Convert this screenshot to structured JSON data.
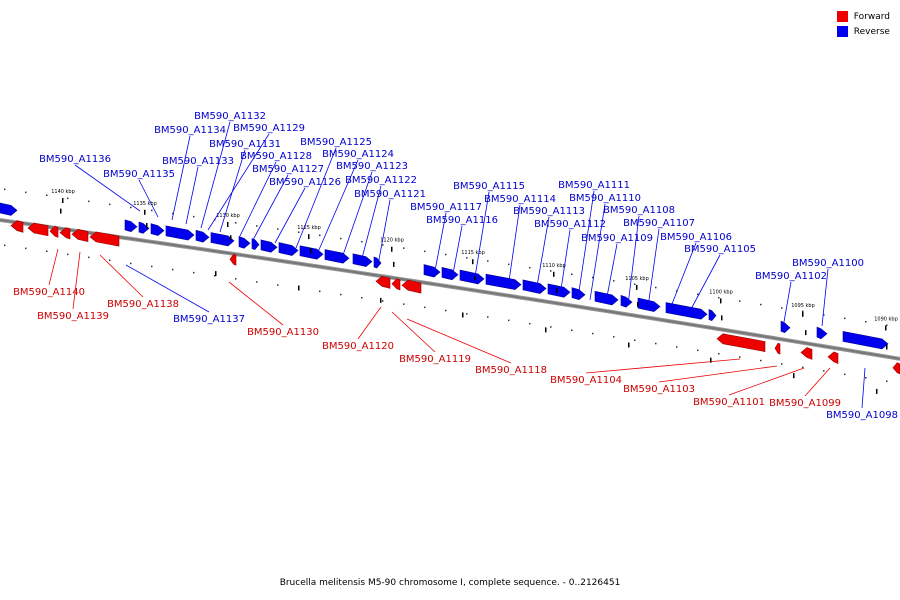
{
  "legend": [
    {
      "label": "Forward",
      "color": "#ee0000"
    },
    {
      "label": "Reverse",
      "color": "#0000ee"
    }
  ],
  "caption": "Brucella melitensis M5-90 chromosome I, complete sequence. - 0..2126451",
  "colors": {
    "forward": "#ee0000",
    "reverse": "#0000ee",
    "axis": "#777777"
  },
  "ticks": [
    "1140 kbp",
    "1135 kbp",
    "1130 kbp",
    "1125 kbp",
    "1120 kbp",
    "1115 kbp",
    "1110 kbp",
    "1105 kbp",
    "1100 kbp",
    "1095 kbp",
    "1090 kbp"
  ],
  "forward_genes": [
    "BM590_A1140",
    "BM590_A1139",
    "BM590_A1138",
    "BM590_A1130",
    "BM590_A1120",
    "BM590_A1119",
    "BM590_A1118",
    "BM590_A1104",
    "BM590_A1103",
    "BM590_A1101",
    "BM590_A1099"
  ],
  "reverse_genes": [
    "BM590_A1137",
    "BM590_A1136",
    "BM590_A1135",
    "BM590_A1134",
    "BM590_A1133",
    "BM590_A1132",
    "BM590_A1131",
    "BM590_A1129",
    "BM590_A1128",
    "BM590_A1127",
    "BM590_A1126",
    "BM590_A1125",
    "BM590_A1124",
    "BM590_A1123",
    "BM590_A1122",
    "BM590_A1121",
    "BM590_A1117",
    "BM590_A1116",
    "BM590_A1115",
    "BM590_A1114",
    "BM590_A1113",
    "BM590_A1112",
    "BM590_A1111",
    "BM590_A1110",
    "BM590_A1109",
    "BM590_A1108",
    "BM590_A1107",
    "BM590_A1106",
    "BM590_A1105",
    "BM590_A1102",
    "BM590_A1100",
    "BM590_A1098"
  ]
}
